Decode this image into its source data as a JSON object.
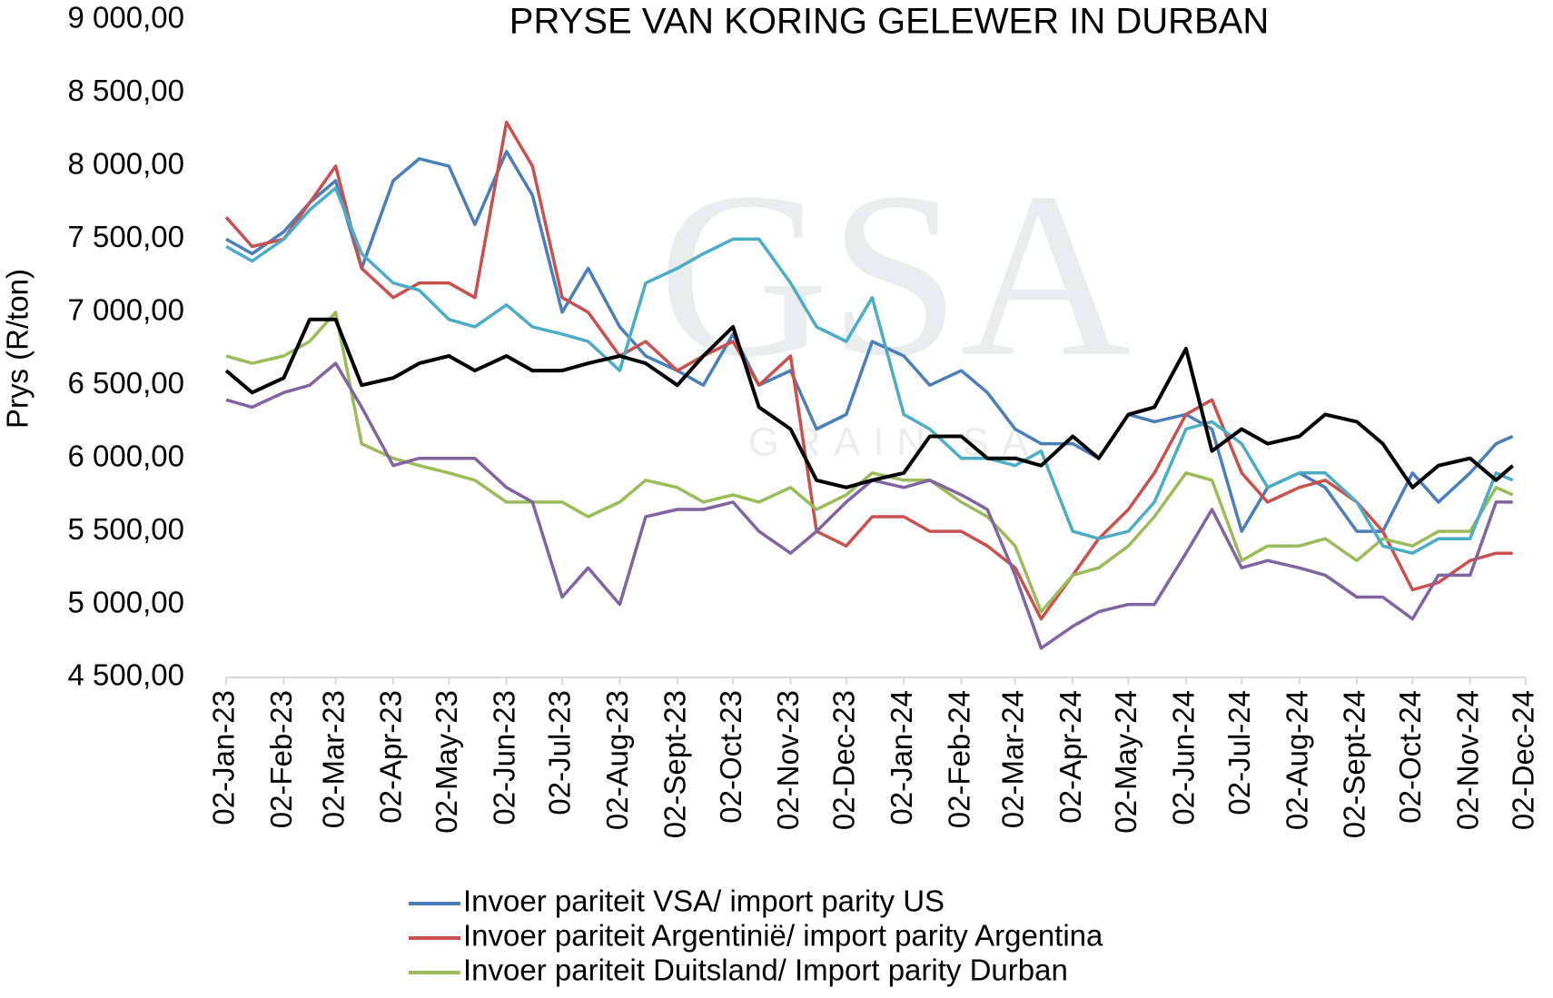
{
  "chart_data": {
    "type": "line",
    "title": "PRYSE VAN KORING GELEWER IN DURBAN",
    "y_label": "Prys (R/ton)",
    "watermark": "GSA",
    "watermark_subtitle": "GRAIN SA",
    "x": [
      "02-Jan-23",
      "16-Jan-23",
      "02-Feb-23",
      "16-Feb-23",
      "02-Mar-23",
      "16-Mar-23",
      "02-Apr-23",
      "16-Apr-23",
      "02-May-23",
      "16-May-23",
      "02-Jun-23",
      "16-Jun-23",
      "02-Jul-23",
      "16-Jul-23",
      "02-Aug-23",
      "16-Aug-23",
      "02-Sept-23",
      "16-Sept-23",
      "02-Oct-23",
      "16-Oct-23",
      "02-Nov-23",
      "16-Nov-23",
      "02-Dec-23",
      "16-Dec-23",
      "02-Jan-24",
      "16-Jan-24",
      "02-Feb-24",
      "16-Feb-24",
      "02-Mar-24",
      "16-Mar-24",
      "02-Apr-24",
      "16-Apr-24",
      "02-May-24",
      "16-May-24",
      "02-Jun-24",
      "16-Jun-24",
      "02-Jul-24",
      "16-Jul-24",
      "02-Aug-24",
      "16-Aug-24",
      "02-Sept-24",
      "16-Sept-24",
      "02-Oct-24",
      "16-Oct-24",
      "02-Nov-24",
      "16-Nov-24",
      "25-Nov-24"
    ],
    "series": [
      {
        "name": "Invoer pariteit VSA/ import parity US",
        "color": "#4a7ebb",
        "values": [
          7500,
          7400,
          7550,
          7750,
          7900,
          7300,
          7900,
          8050,
          8000,
          7600,
          8100,
          7800,
          7000,
          7300,
          6900,
          6700,
          6600,
          6500,
          6850,
          6500,
          6600,
          6200,
          6300,
          6800,
          6700,
          6500,
          6600,
          6450,
          6200,
          6100,
          6100,
          6000,
          6300,
          6250,
          6300,
          6200,
          5500,
          5800,
          5900,
          5800,
          5500,
          5500,
          5900,
          5700,
          5900,
          6100,
          6150
        ]
      },
      {
        "name": "Invoer pariteit Argentinië/ import parity Argentina",
        "color": "#c9504d",
        "values": [
          7650,
          7450,
          7500,
          7750,
          8000,
          7300,
          7100,
          7200,
          7200,
          7100,
          8300,
          8000,
          7100,
          7000,
          6700,
          6800,
          6600,
          6700,
          6800,
          6500,
          6700,
          5500,
          5400,
          5600,
          5600,
          5500,
          5500,
          5400,
          5250,
          4900,
          5200,
          5450,
          5650,
          5900,
          6300,
          6400,
          5900,
          5700,
          5800,
          5850,
          5700,
          5500,
          5100,
          5150,
          5300,
          5350,
          5350
        ]
      },
      {
        "name": "Invoer pariteit Duitsland/ Import parity Durban",
        "color": "#9bbb59",
        "values": [
          6700,
          6650,
          6700,
          6800,
          7000,
          6100,
          6000,
          5950,
          5900,
          5850,
          5700,
          5700,
          5700,
          5600,
          5700,
          5850,
          5800,
          5700,
          5750,
          5700,
          5800,
          5650,
          5750,
          5900,
          5850,
          5850,
          5700,
          5600,
          5400,
          4950,
          5200,
          5250,
          5400,
          5600,
          5900,
          5850,
          5300,
          5400,
          5400,
          5450,
          5300,
          5450,
          5400,
          5500,
          5500,
          5800,
          5750
        ]
      },
      {
        "color": "#8064a2",
        "values": [
          6400,
          6350,
          6450,
          6500,
          6650,
          6350,
          5950,
          6000,
          6000,
          6000,
          5800,
          5700,
          5050,
          5250,
          5000,
          5600,
          5650,
          5650,
          5700,
          5500,
          5350,
          5500,
          5700,
          5850,
          5800,
          5850,
          5750,
          5650,
          5200,
          4700,
          4850,
          4950,
          5000,
          5000,
          5350,
          5650,
          5250,
          5300,
          5250,
          5200,
          5050,
          5050,
          4900,
          5200,
          5200,
          5700,
          5700
        ]
      },
      {
        "color": "#4bacc6",
        "values": [
          7450,
          7350,
          7500,
          7700,
          7850,
          7400,
          7200,
          7150,
          6950,
          6900,
          7050,
          6900,
          6850,
          6800,
          6600,
          7200,
          7300,
          7400,
          7500,
          7500,
          7200,
          6900,
          6800,
          7100,
          6300,
          6200,
          6000,
          6000,
          5950,
          6050,
          5500,
          5450,
          5500,
          5700,
          6200,
          6250,
          6100,
          5800,
          5900,
          5900,
          5700,
          5400,
          5350,
          5450,
          5450,
          5900,
          5850
        ]
      },
      {
        "color": "#000000",
        "values": [
          6600,
          6450,
          6550,
          6950,
          6950,
          6500,
          6550,
          6650,
          6700,
          6600,
          6700,
          6600,
          6600,
          6650,
          6700,
          6650,
          6500,
          6700,
          6900,
          6350,
          6200,
          5850,
          5800,
          5850,
          5900,
          6150,
          6150,
          6000,
          6000,
          5950,
          6150,
          6000,
          6300,
          6350,
          6750,
          6050,
          6200,
          6100,
          6150,
          6300,
          6250,
          6100,
          5800,
          5950,
          6000,
          5850,
          5950
        ]
      }
    ],
    "xlim": [
      "02-Jan-23",
      "02-Dec-24"
    ],
    "xticks": [
      "02-Jan-23",
      "02-Feb-23",
      "02-Mar-23",
      "02-Apr-23",
      "02-May-23",
      "02-Jun-23",
      "02-Jul-23",
      "02-Aug-23",
      "02-Sept-23",
      "02-Oct-23",
      "02-Nov-23",
      "02-Dec-23",
      "02-Jan-24",
      "02-Feb-24",
      "02-Mar-24",
      "02-Apr-24",
      "02-May-24",
      "02-Jun-24",
      "02-Jul-24",
      "02-Aug-24",
      "02-Sept-24",
      "02-Oct-24",
      "02-Nov-24",
      "02-Dec-24"
    ],
    "ylim": [
      4500,
      9000
    ],
    "yticks": [
      {
        "value": 4500,
        "label": "4 500,00"
      },
      {
        "value": 5000,
        "label": "5 000,00"
      },
      {
        "value": 5500,
        "label": "5 500,00"
      },
      {
        "value": 6000,
        "label": "6 000,00"
      },
      {
        "value": 6500,
        "label": "6 500,00"
      },
      {
        "value": 7000,
        "label": "7 000,00"
      },
      {
        "value": 7500,
        "label": "7 500,00"
      },
      {
        "value": 8000,
        "label": "8 000,00"
      },
      {
        "value": 8500,
        "label": "8 500,00"
      },
      {
        "value": 9000,
        "label": "9 000,00"
      }
    ],
    "grid": false
  }
}
